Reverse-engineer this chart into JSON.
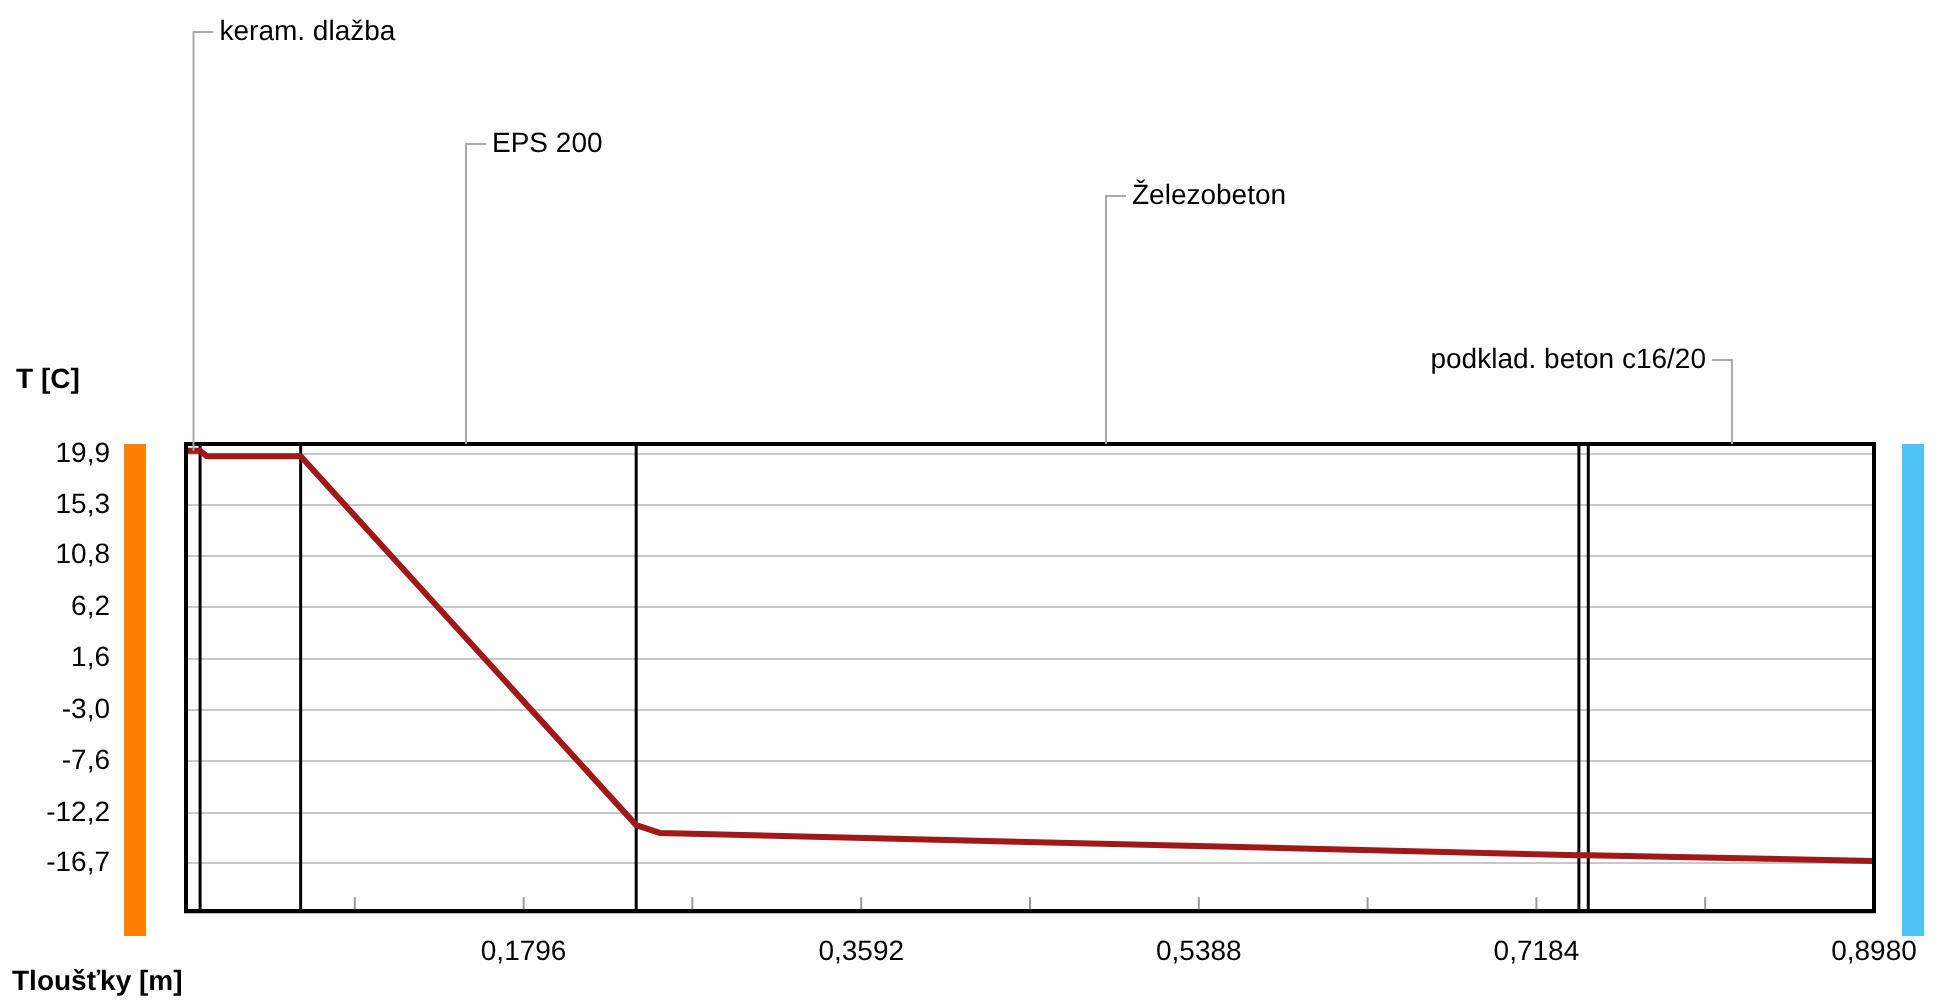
{
  "chart_data": {
    "type": "line",
    "xlabel": "Tloušťky [m]",
    "ylabel": "T [C]",
    "x": [
      0,
      0.0075,
      0.011,
      0.061,
      0.2395,
      0.252,
      0.741,
      0.746,
      0.898
    ],
    "series": [
      {
        "color": "#a01818",
        "values": [
          20.2,
          20.2,
          19.7,
          19.7,
          -13.3,
          -14.0,
          -16.0,
          -16.0,
          -16.5
        ]
      }
    ],
    "xlim": [
      0,
      0.898
    ],
    "xticks": [
      {
        "value": 0.0898,
        "label": null
      },
      {
        "value": 0.1796,
        "label": "0,1796"
      },
      {
        "value": 0.2694,
        "label": null
      },
      {
        "value": 0.3592,
        "label": "0,3592"
      },
      {
        "value": 0.449,
        "label": null
      },
      {
        "value": 0.5388,
        "label": "0,5388"
      },
      {
        "value": 0.6286,
        "label": null
      },
      {
        "value": 0.7184,
        "label": "0,7184"
      },
      {
        "value": 0.8082,
        "label": null
      },
      {
        "value": 0.898,
        "label": "0,8980"
      }
    ],
    "ylim": [
      -21,
      20.8
    ],
    "yticks": [
      {
        "value": -16.7,
        "label": "-16,7"
      },
      {
        "value": -12.2,
        "label": "-12,2"
      },
      {
        "value": -7.6,
        "label": "-7,6"
      },
      {
        "value": -3.0,
        "label": "-3,0"
      },
      {
        "value": 1.6,
        "label": "1,6"
      },
      {
        "value": 6.2,
        "label": "6,2"
      },
      {
        "value": 10.8,
        "label": "10,8"
      },
      {
        "value": 15.3,
        "label": "15,3"
      },
      {
        "value": 19.9,
        "label": "19,9"
      }
    ],
    "grid": "y",
    "legend": false,
    "marker": "none",
    "line_style": "solid",
    "ref_lines": [
      {
        "axis": "x",
        "value": 0.0075,
        "color": "#000000"
      },
      {
        "axis": "x",
        "value": 0.061,
        "color": "#000000"
      },
      {
        "axis": "x",
        "value": 0.2395,
        "color": "#000000"
      },
      {
        "axis": "x",
        "value": 0.741,
        "color": "#000000"
      },
      {
        "axis": "x",
        "value": 0.746,
        "color": "#000000"
      }
    ],
    "annotations": [
      {
        "text": "keram. dlažba",
        "x": 0.004,
        "y": 20.2
      },
      "EPS 200",
      "Železobeton",
      "podklad. beton c16/20"
    ]
  }
}
